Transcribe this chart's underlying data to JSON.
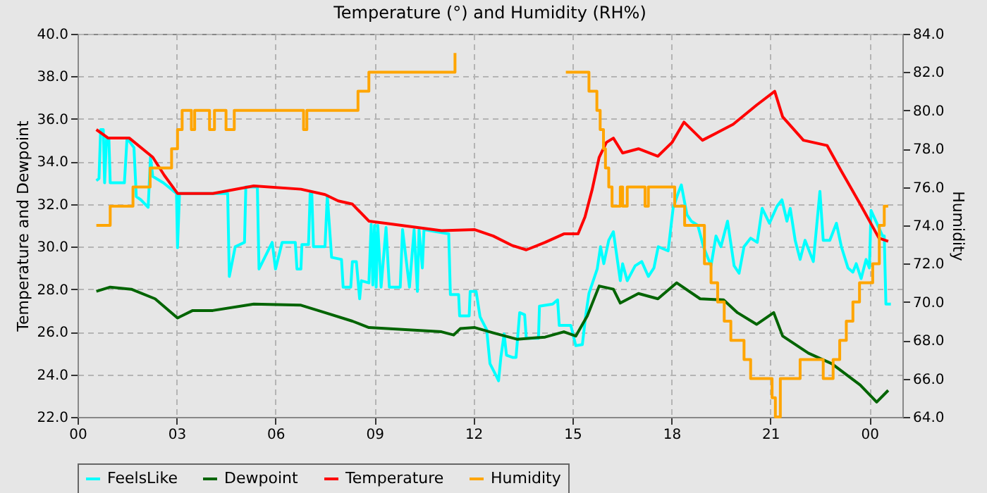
{
  "chart_data": {
    "type": "line",
    "title": "Temperature (°) and Humidity (RH%)",
    "ylabel": "Temperature and Dewpoint",
    "y2label": "Humidity",
    "xlim": [
      0,
      25
    ],
    "xticks": [
      {
        "value": 0,
        "label": "00"
      },
      {
        "value": 3,
        "label": "03"
      },
      {
        "value": 6,
        "label": "06"
      },
      {
        "value": 9,
        "label": "09"
      },
      {
        "value": 12,
        "label": "12"
      },
      {
        "value": 15,
        "label": "15"
      },
      {
        "value": 18,
        "label": "18"
      },
      {
        "value": 21,
        "label": "21"
      },
      {
        "value": 24,
        "label": "00"
      }
    ],
    "ylim": [
      22,
      40
    ],
    "yticks": [
      {
        "value": 22,
        "label": "22.0"
      },
      {
        "value": 24,
        "label": "24.0"
      },
      {
        "value": 26,
        "label": "26.0"
      },
      {
        "value": 28,
        "label": "28.0"
      },
      {
        "value": 30,
        "label": "30.0"
      },
      {
        "value": 32,
        "label": "32.0"
      },
      {
        "value": 34,
        "label": "34.0"
      },
      {
        "value": 36,
        "label": "36.0"
      },
      {
        "value": 38,
        "label": "38.0"
      },
      {
        "value": 40,
        "label": "40.0"
      }
    ],
    "y2lim": [
      64,
      84
    ],
    "y2ticks": [
      {
        "value": 64,
        "label": "64.0"
      },
      {
        "value": 66,
        "label": "66.0"
      },
      {
        "value": 68,
        "label": "68.0"
      },
      {
        "value": 70,
        "label": "70.0"
      },
      {
        "value": 72,
        "label": "72.0"
      },
      {
        "value": 74,
        "label": "74.0"
      },
      {
        "value": 76,
        "label": "76.0"
      },
      {
        "value": 78,
        "label": "78.0"
      },
      {
        "value": 80,
        "label": "80.0"
      },
      {
        "value": 82,
        "label": "82.0"
      },
      {
        "value": 84,
        "label": "84.0"
      }
    ],
    "grid": true,
    "legend": "bottom",
    "series": [
      {
        "name": "FeelsLike",
        "color": "#00ffff",
        "x": [
          0.57,
          0.65,
          0.7,
          0.78,
          0.82,
          0.88,
          0.95,
          0.99,
          1.42,
          1.5,
          1.71,
          1.78,
          1.92,
          2.14,
          2.21,
          2.28,
          2.6,
          3.0,
          3.03,
          3.09,
          4.55,
          4.6,
          4.78,
          5.06,
          5.1,
          5.45,
          5.5,
          5.9,
          6.0,
          6.2,
          6.6,
          6.65,
          6.77,
          6.8,
          7.0,
          7.05,
          7.1,
          7.15,
          7.5,
          7.57,
          7.7,
          8.0,
          8.05,
          8.28,
          8.33,
          8.45,
          8.55,
          8.6,
          8.83,
          8.9,
          8.95,
          9.0,
          9.05,
          9.1,
          9.2,
          9.35,
          9.45,
          9.78,
          9.85,
          10.06,
          10.2,
          10.3,
          10.35,
          10.45,
          10.5,
          11.25,
          11.3,
          11.55,
          11.58,
          11.87,
          11.9,
          12.08,
          12.2,
          12.4,
          12.5,
          12.7,
          12.76,
          12.83,
          12.93,
          13.0,
          13.18,
          13.29,
          13.4,
          13.55,
          13.6,
          13.97,
          14.0,
          14.4,
          14.55,
          14.6,
          14.95,
          15.1,
          15.3,
          15.4,
          15.5,
          15.75,
          15.85,
          15.95,
          16.1,
          16.24,
          16.4,
          16.45,
          16.52,
          16.66,
          16.9,
          17.1,
          17.3,
          17.47,
          17.6,
          17.9,
          18.05,
          18.2,
          18.3,
          18.47,
          18.6,
          18.8,
          18.97,
          19.2,
          19.35,
          19.5,
          19.7,
          19.9,
          20.05,
          20.2,
          20.4,
          20.6,
          20.75,
          20.97,
          21.2,
          21.35,
          21.5,
          21.6,
          21.75,
          21.9,
          22.05,
          22.3,
          22.5,
          22.6,
          22.8,
          23.0,
          23.15,
          23.35,
          23.5,
          23.6,
          23.75,
          23.9,
          24.0,
          24.05,
          24.4,
          24.45,
          24.5,
          24.65
        ],
        "values": [
          33.1,
          33.2,
          35.5,
          35.5,
          33.0,
          35.1,
          35.1,
          33.0,
          33.0,
          35.1,
          34.65,
          32.35,
          32.2,
          31.85,
          34.2,
          33.3,
          33.0,
          32.5,
          29.95,
          32.5,
          32.5,
          28.6,
          30.0,
          30.2,
          32.8,
          32.8,
          28.95,
          30.2,
          28.95,
          30.2,
          30.2,
          28.95,
          28.95,
          30.1,
          30.1,
          32.5,
          32.5,
          30.0,
          30.0,
          32.4,
          29.5,
          29.4,
          28.1,
          28.1,
          29.3,
          29.3,
          27.55,
          28.4,
          28.3,
          31.05,
          28.2,
          31.0,
          28.1,
          31.0,
          28.1,
          30.9,
          28.1,
          28.1,
          30.8,
          28.1,
          30.8,
          27.9,
          30.8,
          29.0,
          30.8,
          30.6,
          27.75,
          27.75,
          26.75,
          26.75,
          27.9,
          27.9,
          26.7,
          26.1,
          24.5,
          23.9,
          23.7,
          24.8,
          25.9,
          24.9,
          24.8,
          24.8,
          26.9,
          26.8,
          25.7,
          25.7,
          27.2,
          27.3,
          27.5,
          26.3,
          26.3,
          25.35,
          25.4,
          26.75,
          27.8,
          28.95,
          30.0,
          29.2,
          30.3,
          30.7,
          28.95,
          28.4,
          29.2,
          28.4,
          29.1,
          29.3,
          28.6,
          29.0,
          30.0,
          29.8,
          31.8,
          32.5,
          32.9,
          31.5,
          31.2,
          31.0,
          30.0,
          29.1,
          30.5,
          30.0,
          31.2,
          29.1,
          28.75,
          30.0,
          30.4,
          30.2,
          31.8,
          31.1,
          31.9,
          32.2,
          31.2,
          31.8,
          30.3,
          29.4,
          30.3,
          29.3,
          32.6,
          30.3,
          30.3,
          31.1,
          30.0,
          29.0,
          28.8,
          29.2,
          28.5,
          29.4,
          29.0,
          31.7,
          30.5,
          30.5,
          27.3,
          27.3
        ]
      },
      {
        "name": "Dewpoint",
        "color": "#006400",
        "x": [
          0.57,
          0.99,
          1.63,
          2.35,
          3.03,
          3.49,
          4.1,
          5.34,
          6.77,
          7.5,
          8.33,
          8.83,
          11.03,
          11.4,
          11.6,
          12.04,
          12.6,
          13.32,
          14.17,
          14.74,
          15.1,
          15.45,
          15.81,
          16.24,
          16.45,
          17.0,
          17.59,
          18.16,
          18.87,
          19.58,
          20.0,
          20.58,
          21.1,
          21.37,
          22.15,
          22.86,
          23.72,
          24.22,
          24.57
        ],
        "values": [
          27.9,
          28.1,
          28.0,
          27.55,
          26.65,
          27.0,
          27.0,
          27.3,
          27.25,
          26.9,
          26.5,
          26.2,
          26.0,
          25.85,
          26.15,
          26.2,
          25.95,
          25.65,
          25.75,
          26.0,
          25.8,
          26.75,
          28.15,
          28.0,
          27.35,
          27.8,
          27.55,
          28.3,
          27.55,
          27.5,
          26.9,
          26.35,
          26.9,
          25.8,
          25.0,
          24.5,
          23.5,
          22.7,
          23.25
        ]
      },
      {
        "name": "Temperature",
        "color": "#ff0000",
        "x": [
          0.57,
          0.93,
          1.57,
          2.28,
          2.63,
          3.03,
          4.1,
          5.34,
          6.77,
          7.5,
          7.9,
          8.33,
          8.83,
          9.33,
          11.03,
          12.04,
          12.6,
          13.18,
          13.6,
          14.17,
          14.74,
          15.17,
          15.38,
          15.6,
          15.81,
          16.03,
          16.24,
          16.52,
          17.0,
          17.59,
          18.02,
          18.38,
          18.94,
          19.44,
          19.87,
          20.58,
          21.13,
          21.37,
          22.0,
          22.72,
          23.15,
          23.72,
          24.29,
          24.57
        ],
        "values": [
          35.5,
          35.1,
          35.1,
          34.2,
          33.35,
          32.5,
          32.5,
          32.85,
          32.7,
          32.45,
          32.15,
          32.0,
          31.2,
          31.1,
          30.75,
          30.8,
          30.5,
          30.05,
          29.85,
          30.2,
          30.6,
          30.6,
          31.4,
          32.7,
          34.2,
          34.9,
          35.1,
          34.4,
          34.6,
          34.25,
          34.9,
          35.85,
          35.0,
          35.4,
          35.75,
          36.65,
          37.3,
          36.1,
          35.0,
          34.75,
          33.55,
          32.0,
          30.4,
          30.25
        ]
      },
      {
        "name": "Humidity",
        "color": "#ffa500",
        "type": "step",
        "axis": "y2",
        "x": [
          0.57,
          0.99,
          1.68,
          2.2,
          2.85,
          3.03,
          3.17,
          3.45,
          3.55,
          4.0,
          4.15,
          4.5,
          4.75,
          6.85,
          6.95,
          8.5,
          8.83,
          11.44,
          13.03,
          14.8,
          15.5,
          15.74,
          15.84,
          15.94,
          16.0,
          16.1,
          16.2,
          16.45,
          16.52,
          16.66,
          17.2,
          17.3,
          18.1,
          18.4,
          19.0,
          19.2,
          19.4,
          19.6,
          19.8,
          20.2,
          20.4,
          21.05,
          21.15,
          21.3,
          21.9,
          22.6,
          22.9,
          23.1,
          23.3,
          23.5,
          23.7,
          24.1,
          24.3,
          24.45,
          24.57
        ],
        "values": [
          74,
          75,
          76,
          77,
          78,
          79,
          80,
          79,
          80,
          79,
          80,
          79,
          80,
          79,
          80,
          81,
          82,
          83,
          null,
          82,
          81,
          80,
          79,
          78,
          77,
          76,
          75,
          76,
          75,
          76,
          75,
          76,
          75,
          74,
          72,
          71,
          70,
          69,
          68,
          67,
          66,
          65,
          64,
          66,
          67,
          66,
          67,
          68,
          69,
          70,
          71,
          72,
          74,
          75,
          75
        ]
      }
    ]
  }
}
